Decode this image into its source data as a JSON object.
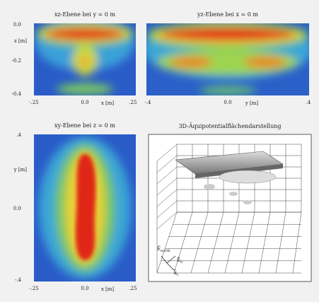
{
  "panels": [
    {
      "title": "xz-Ebene bei y = 0 m",
      "x_label": "x [m]",
      "y_label": "z [m]",
      "x_ticks": [
        "-.25",
        "0.0",
        ".25"
      ],
      "y_ticks": [
        "0.0",
        "-0.2",
        "-0.4"
      ]
    },
    {
      "title": "yz-Ebene bei x = 0 m",
      "x_label": "y [m]",
      "x_ticks": [
        "-.4",
        "0.0",
        ".4"
      ]
    },
    {
      "title": "xy-Ebene bei z = 0 m",
      "x_label": "x [m]",
      "y_label": "y [m]",
      "x_ticks": [
        "-.25",
        "0.0",
        ".25"
      ],
      "y_ticks": [
        ".4",
        "0.0",
        "-.4"
      ]
    },
    {
      "title": "3D-Äquipotentialflächendarstellung",
      "vectors": [
        {
          "symbol": "Ê",
          "sub": "earth"
        },
        {
          "symbol": "Ê",
          "sub": "0"
        },
        {
          "symbol": "k̂",
          "sub": "i"
        }
      ]
    }
  ]
}
